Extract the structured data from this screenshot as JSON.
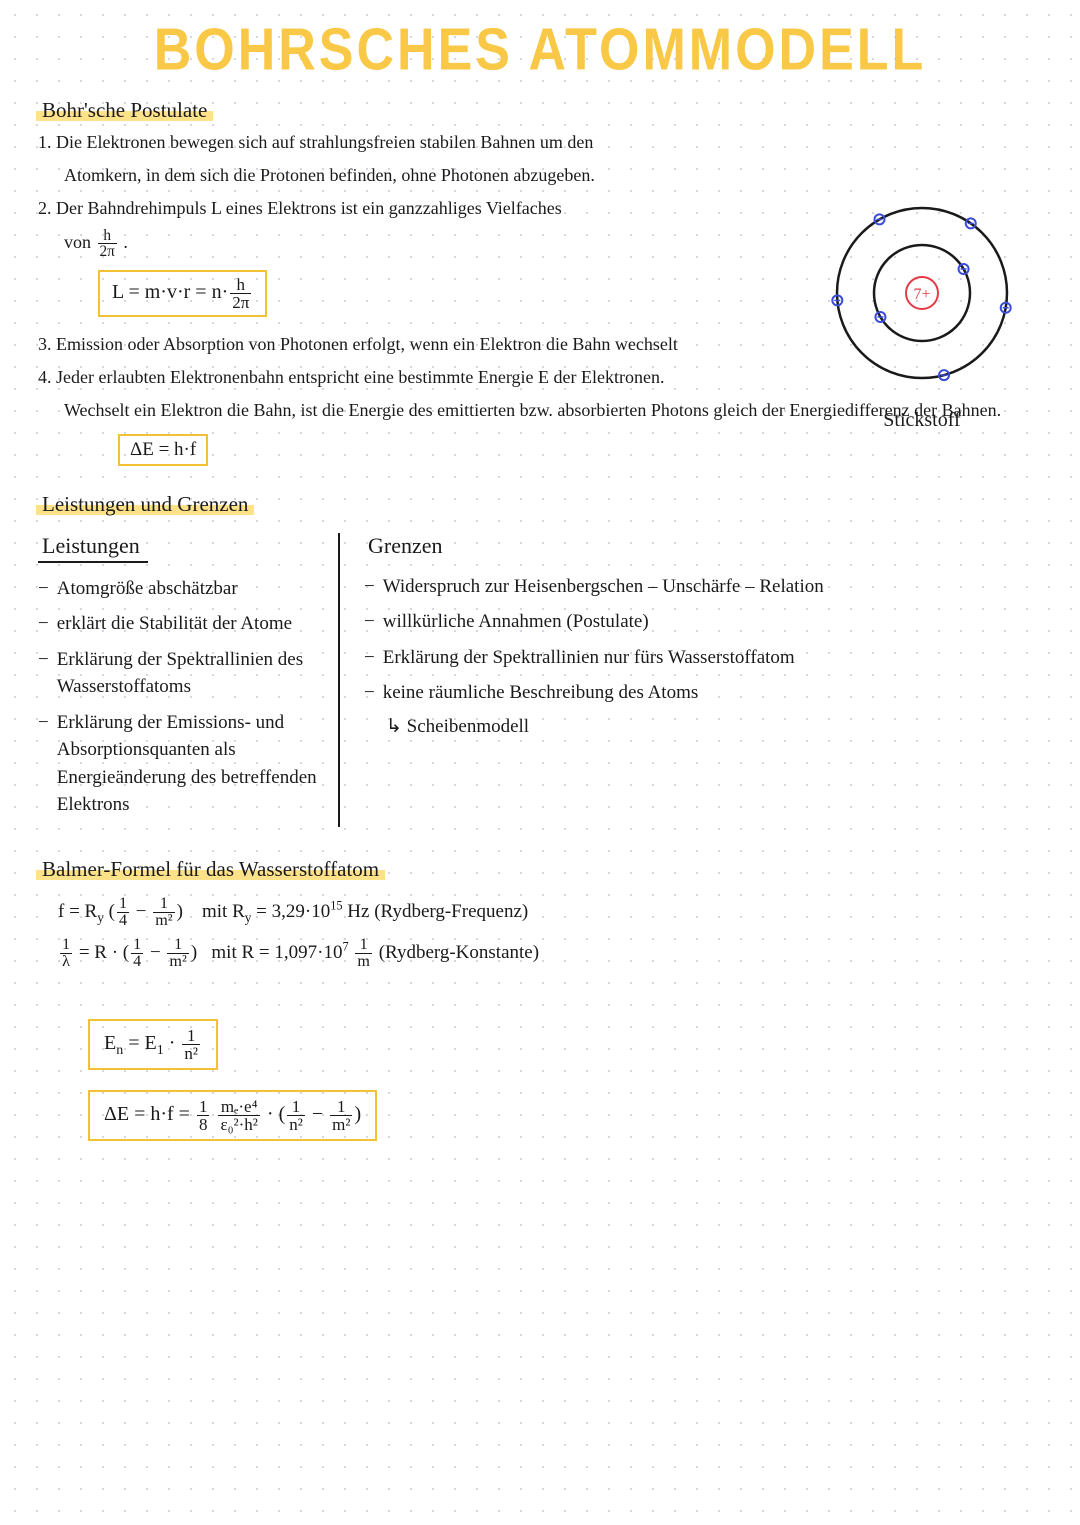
{
  "title": "BOHRSCHES ATOMMODELL",
  "colors": {
    "title": "#f9c846",
    "highlight": "#fde28a",
    "box_border": "#f3c234",
    "ink": "#1a1a1a",
    "electron": "#3a4cd8",
    "nucleus": "#e63946",
    "dotgrid": "#c8c8d8"
  },
  "sections": {
    "postulate": {
      "header": "Bohr'sche Postulate",
      "items": [
        "1. Die Elektronen bewegen sich auf strahlungsfreien stabilen Bahnen um den",
        "Atomkern, in dem sich die Protonen befinden, ohne Photonen abzugeben.",
        "2. Der Bahndrehimpuls L eines Elektrons ist ein ganzzahliges Vielfaches",
        "von h/2π .",
        "3. Emission oder Absorption von Photonen erfolgt, wenn ein Elektron die Bahn wechselt",
        "4. Jeder erlaubten Elektronenbahn entspricht eine bestimmte Energie E der Elektronen.",
        "Wechselt ein Elektron die Bahn, ist die Energie des emittierten bzw. absorbierten Photons gleich der Energiedifferenz der Bahnen."
      ],
      "formula1_lhs": "L = m·v·r = n·",
      "formula1_frac_num": "h",
      "formula1_frac_den": "2π",
      "formula2": "ΔE = h·f"
    },
    "leistungen": {
      "header": "Leistungen und Grenzen",
      "left_header": "Leistungen",
      "right_header": "Grenzen",
      "left": [
        "Atomgröße abschätzbar",
        "erklärt die Stabilität der Atome",
        "Erklärung der Spektrallinien des Wasserstoffatoms",
        "Erklärung der Emissions- und Absorptionsquanten als Energieänderung des betreffenden Elektrons"
      ],
      "right": [
        "Widerspruch zur Heisenbergschen – Unschärfe – Relation",
        "willkürliche Annahmen (Postulate)",
        "Erklärung der Spektrallinien nur fürs Wasserstoffatom",
        "keine räumliche Beschreibung des Atoms"
      ],
      "right_sub": "↳ Scheibenmodell"
    },
    "balmer": {
      "header": "Balmer-Formel für das Wasserstoffatom",
      "line1_pre": "f = R",
      "line1_y": "y",
      "line1_mid": "mit R",
      "line1_val": " = 3,29·10",
      "line1_exp": "15",
      "line1_post": "Hz (Rydberg-Frequenz)",
      "line2_pre": " = R ·",
      "line2_mid": "mit R = 1,097·10",
      "line2_exp": "7",
      "line2_unit_num": "1",
      "line2_unit_den": "m",
      "line2_post": " (Rydberg-Konstante)",
      "box1_lhs": "E",
      "box1_sub": "n",
      "box1_mid": " = E",
      "box1_sub2": "1",
      "box1_dot": "·",
      "box1_frac_num": "1",
      "box1_frac_den": "n²",
      "box2_pre": "ΔE = h·f = ",
      "box2_f1_num": "1",
      "box2_f1_den": "8",
      "box2_f2_num": "mₑ·e⁴",
      "box2_f2_den": "ε₀²·h²",
      "box2_dot": " · ",
      "box2_paren_open": "(",
      "box2_f3_num": "1",
      "box2_f3_den": "n²",
      "box2_minus": " − ",
      "box2_f4_num": "1",
      "box2_f4_den": "m²",
      "box2_paren_close": ")"
    }
  },
  "atom": {
    "label": "Stickstoff",
    "nucleus_text": "7+",
    "shells": [
      {
        "r": 48,
        "electrons": 2
      },
      {
        "r": 85,
        "electrons": 5
      }
    ],
    "electron_positions": [
      {
        "shell": 0,
        "angle": 30
      },
      {
        "shell": 0,
        "angle": 210
      },
      {
        "shell": 1,
        "angle": 55
      },
      {
        "shell": 1,
        "angle": 120
      },
      {
        "shell": 1,
        "angle": 185
      },
      {
        "shell": 1,
        "angle": 285
      },
      {
        "shell": 1,
        "angle": 350
      }
    ]
  }
}
